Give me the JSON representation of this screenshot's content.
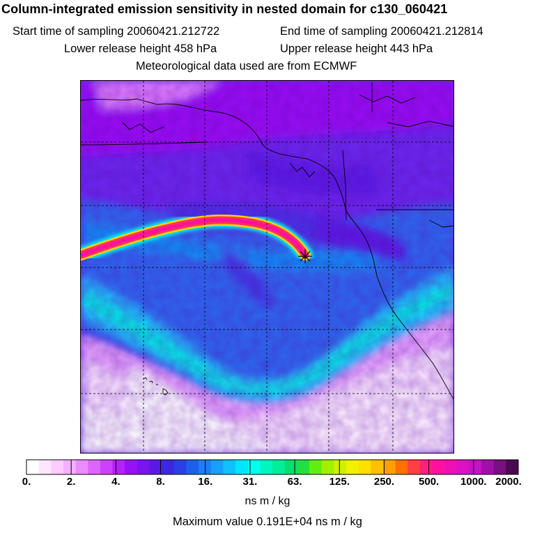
{
  "header": {
    "title": "Column-integrated emission sensitivity in nested domain for c130_060421",
    "start_label": "Start time of sampling 20060421.212722",
    "end_label": "End time of sampling 20060421.212814",
    "lower_label": "Lower release height  458 hPa",
    "upper_label": "Upper release height  443 hPa",
    "met_label": "Meteorological data used are from ECMWF"
  },
  "map": {
    "release_point_marker": "star-cross",
    "graticule_style": "dashed"
  },
  "legend": {
    "tick_labels": [
      "0.",
      "2.",
      "4.",
      "8.",
      "16.",
      "31.",
      "63.",
      "125.",
      "250.",
      "500.",
      "1000.",
      "2000."
    ],
    "units": "ns m / kg",
    "max_value_label": "Maximum value  0.191E+04 ns m / kg",
    "colors": [
      "#ffffff",
      "#ffe6ff",
      "#ffccff",
      "#f5b0ff",
      "#ea8cff",
      "#dd66ff",
      "#cc40ff",
      "#b61fff",
      "#9a10f5",
      "#7a14ee",
      "#5a1ae6",
      "#3c28e0",
      "#2a40e6",
      "#1e60ee",
      "#1a80f5",
      "#16a0fa",
      "#10c0ff",
      "#00e6ff",
      "#00ffee",
      "#00f5c0",
      "#00ee99",
      "#00e070",
      "#20e040",
      "#60ee10",
      "#a0f000",
      "#d0f000",
      "#f0f000",
      "#ffe000",
      "#ffc000",
      "#ffa000",
      "#ff7000",
      "#ff4040",
      "#ff2080",
      "#ff10a0",
      "#ee10b4",
      "#dd10c4",
      "#c810c8",
      "#a010a8",
      "#781080",
      "#4a0a50"
    ]
  }
}
